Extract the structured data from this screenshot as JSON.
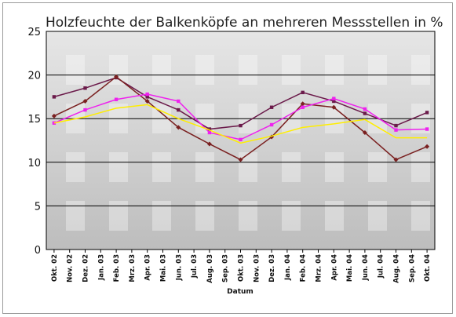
{
  "chart_data": {
    "type": "line",
    "title": "Holzfeuchte der Balkenköpfe an mehreren Messstellen in %",
    "xlabel": "Datum",
    "ylabel": "",
    "ylim": [
      0,
      25
    ],
    "yticks": [
      0,
      5,
      10,
      15,
      20,
      25
    ],
    "grid": true,
    "legend": "none",
    "categories": [
      "Okt. 02",
      "Nov. 02",
      "Dez. 02",
      "Jan. 03",
      "Feb. 03",
      "Mrz. 03",
      "Apr. 03",
      "Mai. 03",
      "Jun. 03",
      "Jul. 03",
      "Aug. 03",
      "Sep. 03",
      "Okt. 03",
      "Nov. 03",
      "Dez. 03",
      "Jan. 04",
      "Feb. 04",
      "Mrz. 04",
      "Apr. 04",
      "Mai. 04",
      "Jun. 04",
      "Jul. 04",
      "Aug. 04",
      "Sep. 04",
      "Okt. 04"
    ],
    "series": [
      {
        "color": "#6b1a4a",
        "marker": "square",
        "values": [
          17.5,
          null,
          18.5,
          null,
          19.7,
          null,
          17.5,
          null,
          16.0,
          null,
          13.8,
          null,
          14.2,
          null,
          16.3,
          null,
          18.0,
          null,
          17.0,
          null,
          15.6,
          null,
          14.2,
          null,
          15.7
        ]
      },
      {
        "color": "#7a2020",
        "marker": "diamond",
        "values": [
          15.3,
          null,
          17.0,
          null,
          19.8,
          null,
          17.0,
          null,
          14.0,
          null,
          12.1,
          null,
          10.3,
          null,
          12.9,
          null,
          16.7,
          null,
          16.3,
          null,
          13.4,
          null,
          10.3,
          null,
          11.8
        ]
      },
      {
        "color": "#ee22ee",
        "marker": "square",
        "values": [
          14.5,
          null,
          16.0,
          null,
          17.2,
          null,
          17.8,
          null,
          17.0,
          null,
          13.4,
          null,
          12.6,
          null,
          14.3,
          null,
          16.3,
          null,
          17.3,
          null,
          16.1,
          null,
          13.7,
          null,
          13.8
        ]
      },
      {
        "color": "#ffee00",
        "marker": "none",
        "values": [
          14.5,
          null,
          15.2,
          null,
          16.2,
          null,
          16.6,
          null,
          15.0,
          null,
          13.7,
          null,
          12.2,
          null,
          13.0,
          null,
          14.0,
          null,
          14.4,
          null,
          14.9,
          null,
          12.8,
          null,
          12.8
        ]
      }
    ]
  }
}
